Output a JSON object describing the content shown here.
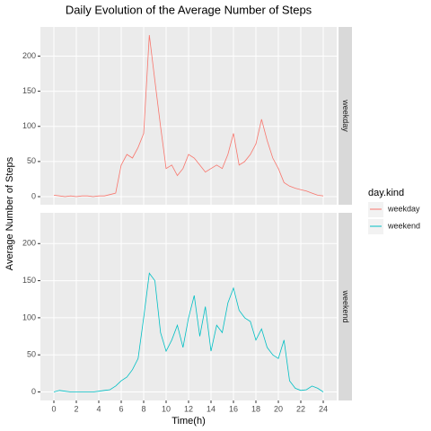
{
  "chart_data": {
    "type": "line",
    "title": "Daily Evolution of the Average Number of Steps",
    "x_label": "Time(h)",
    "y_label": "Average Number of Steps",
    "legend_title": "day.kind",
    "legend": "right",
    "grid": true,
    "facet": true,
    "x": [
      0,
      0.5,
      1,
      1.5,
      2,
      2.5,
      3,
      3.5,
      4,
      4.5,
      5,
      5.5,
      6,
      6.5,
      7,
      7.5,
      8,
      8.5,
      9,
      9.5,
      10,
      10.5,
      11,
      11.5,
      12,
      12.5,
      13,
      13.5,
      14,
      14.5,
      15,
      15.5,
      16,
      16.5,
      17,
      17.5,
      18,
      18.5,
      19,
      19.5,
      20,
      20.5,
      21,
      21.5,
      22,
      22.5,
      23,
      23.5,
      24
    ],
    "series": [
      {
        "name": "weekday",
        "color": "#F8766D",
        "values": [
          2,
          1,
          0,
          1,
          0,
          1,
          1,
          0,
          1,
          1,
          3,
          5,
          45,
          60,
          55,
          70,
          90,
          230,
          165,
          100,
          40,
          45,
          30,
          40,
          60,
          55,
          45,
          35,
          40,
          45,
          40,
          60,
          90,
          45,
          50,
          60,
          75,
          110,
          80,
          55,
          40,
          20,
          15,
          12,
          10,
          8,
          5,
          2,
          1
        ]
      },
      {
        "name": "weekend",
        "color": "#00BFC4",
        "values": [
          0,
          2,
          1,
          0,
          0,
          0,
          0,
          0,
          1,
          2,
          3,
          8,
          15,
          20,
          30,
          45,
          100,
          160,
          150,
          80,
          55,
          70,
          90,
          60,
          100,
          130,
          75,
          115,
          55,
          90,
          80,
          120,
          140,
          110,
          100,
          95,
          70,
          85,
          60,
          50,
          45,
          70,
          15,
          5,
          2,
          3,
          8,
          5,
          0
        ]
      }
    ],
    "xlim": [
      -1.2,
      25.2
    ],
    "xticks": [
      0,
      2,
      4,
      6,
      8,
      10,
      12,
      14,
      16,
      18,
      20,
      22,
      24
    ],
    "ylim": [
      -11.5,
      241.5
    ],
    "yticks": [
      0,
      50,
      100,
      150,
      200
    ]
  }
}
